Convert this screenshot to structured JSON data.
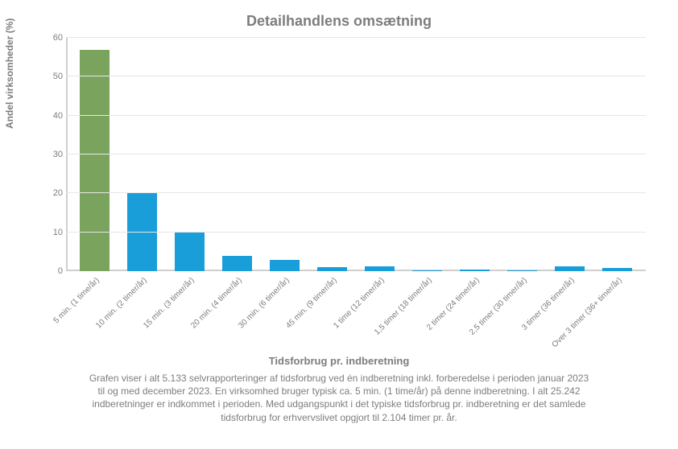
{
  "chart": {
    "type": "bar",
    "title": "Detailhandlens omsætning",
    "title_fontsize": 18,
    "title_color": "#7d7d7d",
    "ylabel": "Andel virksomheder (%)",
    "xlabel": "Tidsforbrug pr. indberetning",
    "label_fontsize": 12,
    "label_color": "#7d7d7d",
    "ylim": [
      0,
      60
    ],
    "ytick_step": 10,
    "yticks": [
      0,
      10,
      20,
      30,
      40,
      50,
      60
    ],
    "tick_fontsize": 11,
    "tick_color": "#7d7d7d",
    "background_color": "#ffffff",
    "grid_color": "#e6e6e6",
    "axis_color": "#cfcfcf",
    "bar_width": 0.62,
    "xtick_rotation": -45,
    "categories": [
      "5 min. (1 time/år)",
      "10 min. (2 timer/år)",
      "15 min. (3 timer/år)",
      "20 min. (4 timer/år)",
      "30 min. (6 timer/år)",
      "45 min. (9 timer/år)",
      "1 time (12 timer/år)",
      "1,5 timer (18 timer/år)",
      "2 timer (24 timer/år)",
      "2,5 timer (30 timer/år)",
      "3 timer (36 timer/år)",
      "Over 3 timer (36+ timer/år)"
    ],
    "values": [
      57,
      20,
      10,
      4,
      3,
      1,
      1.2,
      0.2,
      0.5,
      0.2,
      1.2,
      0.8
    ],
    "bar_colors": [
      "#7aa45d",
      "#1a9ed9",
      "#1a9ed9",
      "#1a9ed9",
      "#1a9ed9",
      "#1a9ed9",
      "#1a9ed9",
      "#1a9ed9",
      "#1a9ed9",
      "#1a9ed9",
      "#1a9ed9",
      "#1a9ed9"
    ],
    "caption_lines": [
      "Grafen viser i alt 5.133 selvrapporteringer af tidsforbrug ved én indberetning inkl. forberedelse i perioden januar 2023",
      "til og med december 2023. En virksomhed bruger typisk ca. 5 min. (1 time/år) på denne indberetning. I alt 25.242",
      "indberetninger er indkommet i perioden. Med udgangspunkt i det typiske tidsforbrug pr. indberetning er det samlede",
      "tidsforbrug for erhvervslivet opgjort til 2.104 timer pr. år."
    ],
    "caption_fontsize": 12,
    "caption_color": "#7d7d7d"
  }
}
